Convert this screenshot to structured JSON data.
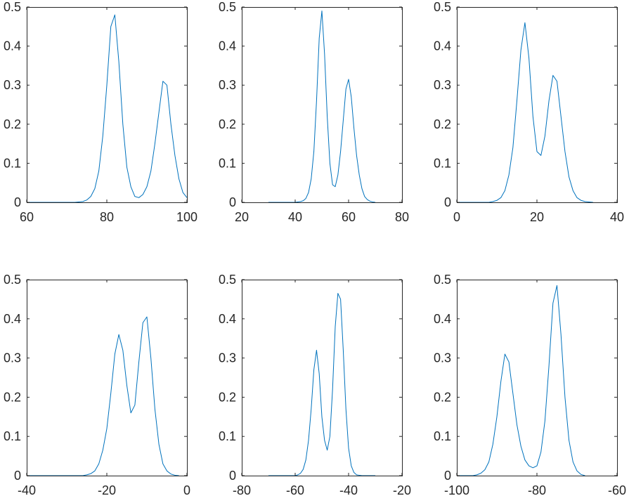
{
  "chart_data": [
    {
      "type": "line",
      "xlim": [
        60,
        100
      ],
      "ylim": [
        0,
        0.5
      ],
      "xticks": [
        "60",
        "80",
        "100"
      ],
      "yticks": [
        "0",
        "0.1",
        "0.2",
        "0.3",
        "0.4",
        "0.5"
      ],
      "grid": false,
      "series": [
        {
          "color": "#0072BD",
          "x": [
            60,
            72,
            74,
            75,
            76,
            77,
            78,
            79,
            80,
            81,
            82,
            83,
            84,
            85,
            86,
            87,
            88,
            89,
            90,
            91,
            92,
            93,
            94,
            95,
            96,
            97,
            98,
            99,
            100
          ],
          "y": [
            0,
            0,
            0.002,
            0.006,
            0.015,
            0.035,
            0.08,
            0.17,
            0.3,
            0.45,
            0.48,
            0.36,
            0.2,
            0.09,
            0.04,
            0.015,
            0.012,
            0.02,
            0.04,
            0.08,
            0.15,
            0.23,
            0.31,
            0.3,
            0.2,
            0.12,
            0.06,
            0.025,
            0.012
          ]
        }
      ]
    },
    {
      "type": "line",
      "xlim": [
        20,
        80
      ],
      "ylim": [
        0,
        0.5
      ],
      "xticks": [
        "20",
        "40",
        "60",
        "80"
      ],
      "yticks": [
        "0",
        "0.1",
        "0.2",
        "0.3",
        "0.4",
        "0.5"
      ],
      "grid": false,
      "series": [
        {
          "color": "#0072BD",
          "x": [
            30,
            40,
            42,
            43,
            44,
            45,
            46,
            47,
            48,
            49,
            50,
            51,
            52,
            53,
            54,
            55,
            56,
            57,
            58,
            59,
            60,
            61,
            62,
            63,
            64,
            65,
            66,
            67,
            68,
            69,
            70
          ],
          "y": [
            0,
            0,
            0.002,
            0.004,
            0.01,
            0.025,
            0.06,
            0.13,
            0.26,
            0.42,
            0.49,
            0.38,
            0.22,
            0.1,
            0.045,
            0.04,
            0.07,
            0.13,
            0.21,
            0.29,
            0.315,
            0.27,
            0.19,
            0.12,
            0.07,
            0.035,
            0.015,
            0.007,
            0.003,
            0.001,
            0
          ]
        }
      ]
    },
    {
      "type": "line",
      "xlim": [
        0,
        40
      ],
      "ylim": [
        0,
        0.5
      ],
      "xticks": [
        "0",
        "20",
        "40"
      ],
      "yticks": [
        "0",
        "0.1",
        "0.2",
        "0.3",
        "0.4",
        "0.5"
      ],
      "grid": false,
      "series": [
        {
          "color": "#0072BD",
          "x": [
            0,
            8,
            9,
            10,
            11,
            12,
            13,
            14,
            15,
            16,
            17,
            18,
            19,
            20,
            21,
            22,
            23,
            24,
            25,
            26,
            27,
            28,
            29,
            30,
            31,
            32,
            33,
            34
          ],
          "y": [
            0,
            0,
            0.002,
            0.005,
            0.012,
            0.03,
            0.07,
            0.14,
            0.26,
            0.39,
            0.46,
            0.37,
            0.22,
            0.13,
            0.12,
            0.17,
            0.26,
            0.325,
            0.31,
            0.22,
            0.13,
            0.065,
            0.03,
            0.012,
            0.005,
            0.002,
            0.001,
            0
          ]
        }
      ]
    },
    {
      "type": "line",
      "xlim": [
        -40,
        0
      ],
      "ylim": [
        0,
        0.5
      ],
      "xticks": [
        "-40",
        "-20",
        "0"
      ],
      "yticks": [
        "0",
        "0.1",
        "0.2",
        "0.3",
        "0.4",
        "0.5"
      ],
      "grid": false,
      "series": [
        {
          "color": "#0072BD",
          "x": [
            -40,
            -26,
            -25,
            -24,
            -23,
            -22,
            -21,
            -20,
            -19,
            -18,
            -17,
            -16,
            -15,
            -14,
            -13,
            -12,
            -11,
            -10,
            -9,
            -8,
            -7,
            -6,
            -5,
            -4,
            -3,
            -2
          ],
          "y": [
            0,
            0,
            0.002,
            0.005,
            0.012,
            0.03,
            0.065,
            0.12,
            0.21,
            0.31,
            0.36,
            0.32,
            0.23,
            0.16,
            0.18,
            0.29,
            0.39,
            0.405,
            0.3,
            0.17,
            0.08,
            0.03,
            0.012,
            0.004,
            0.001,
            0
          ]
        }
      ]
    },
    {
      "type": "line",
      "xlim": [
        -80,
        -20
      ],
      "ylim": [
        0,
        0.5
      ],
      "xticks": [
        "-80",
        "-60",
        "-40",
        "-20"
      ],
      "yticks": [
        "0",
        "0.1",
        "0.2",
        "0.3",
        "0.4",
        "0.5"
      ],
      "grid": false,
      "series": [
        {
          "color": "#0072BD",
          "x": [
            -70,
            -60,
            -59,
            -58,
            -57,
            -56,
            -55,
            -54,
            -53,
            -52,
            -51,
            -50,
            -49,
            -48,
            -47,
            -46,
            -45,
            -44,
            -43,
            -42,
            -41,
            -40,
            -39,
            -38,
            -37,
            -36,
            -35,
            -30
          ],
          "y": [
            0,
            0,
            0.002,
            0.006,
            0.016,
            0.04,
            0.09,
            0.17,
            0.27,
            0.32,
            0.26,
            0.15,
            0.09,
            0.065,
            0.1,
            0.22,
            0.38,
            0.465,
            0.45,
            0.32,
            0.17,
            0.07,
            0.025,
            0.008,
            0.002,
            0.001,
            0,
            0
          ]
        }
      ]
    },
    {
      "type": "line",
      "xlim": [
        -100,
        -60
      ],
      "ylim": [
        0,
        0.5
      ],
      "xticks": [
        "-100",
        "-80",
        "-60"
      ],
      "yticks": [
        "0",
        "0.1",
        "0.2",
        "0.3",
        "0.4",
        "0.5"
      ],
      "grid": false,
      "series": [
        {
          "color": "#0072BD",
          "x": [
            -100,
            -96,
            -95,
            -94,
            -93,
            -92,
            -91,
            -90,
            -89,
            -88,
            -87,
            -86,
            -85,
            -84,
            -83,
            -82,
            -81,
            -80,
            -79,
            -78,
            -77,
            -76,
            -75,
            -74,
            -73,
            -72,
            -71,
            -70,
            -69,
            -68
          ],
          "y": [
            0,
            0,
            0.002,
            0.006,
            0.015,
            0.035,
            0.08,
            0.15,
            0.24,
            0.31,
            0.29,
            0.21,
            0.13,
            0.075,
            0.04,
            0.025,
            0.02,
            0.025,
            0.06,
            0.14,
            0.28,
            0.44,
            0.485,
            0.36,
            0.2,
            0.09,
            0.035,
            0.012,
            0.003,
            0
          ]
        }
      ]
    }
  ]
}
